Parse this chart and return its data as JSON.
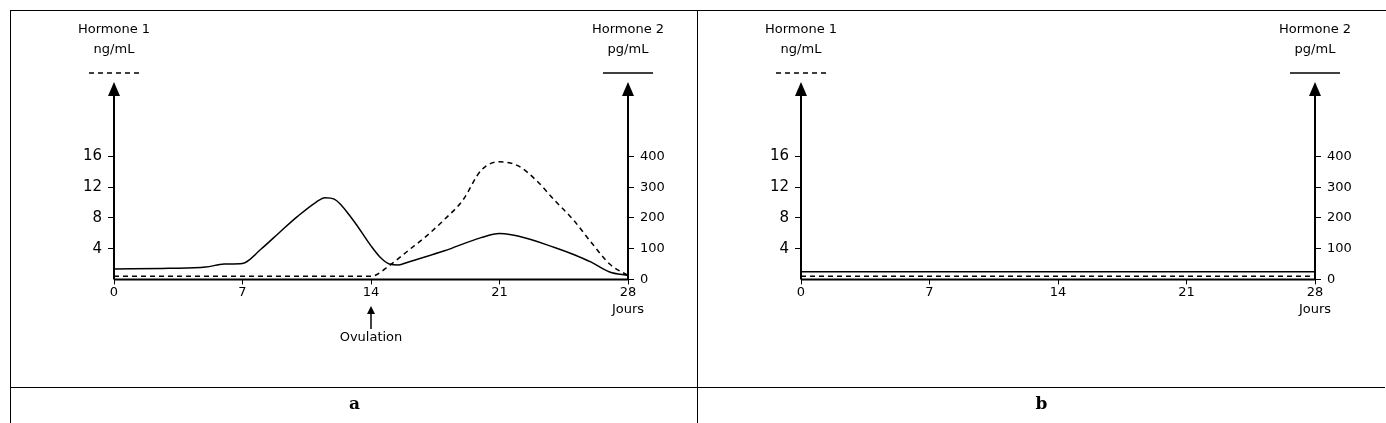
{
  "chart_data": [
    {
      "type": "line",
      "title": "a",
      "ylabel": "Hormone 1\nng/mL",
      "y2label": "Hormone 2\npg/mL",
      "xlabel": "Jours",
      "xlim": [
        0,
        28
      ],
      "xticks": [
        0,
        7,
        14,
        21,
        28
      ],
      "ylim": [
        0,
        24
      ],
      "yticks": [
        4,
        8,
        12,
        16
      ],
      "y2lim": [
        0,
        600
      ],
      "y2ticks": [
        0,
        100,
        200,
        300,
        400
      ],
      "grid": false,
      "marker": "none",
      "annotations": [
        "Ovulation"
      ],
      "series": [
        {
          "color": "#000000",
          "line_style": "dashed",
          "x": [
            0,
            7,
            14,
            15,
            16,
            17,
            18,
            19,
            20,
            21,
            22,
            23,
            24,
            25,
            26,
            27,
            28
          ],
          "values": [
            0.4,
            0.4,
            0.4,
            1.8,
            3.7,
            5.6,
            7.8,
            10.3,
            14.2,
            15.3,
            14.8,
            12.9,
            10.3,
            7.8,
            4.8,
            2.0,
            0.5
          ]
        },
        {
          "color": "#000000",
          "line_style": "solid",
          "axis": "y2",
          "x": [
            0,
            3,
            5,
            6,
            7,
            8,
            9,
            10,
            11,
            11.5,
            12,
            13,
            14,
            14.5,
            15,
            15.5,
            16,
            18,
            20,
            21,
            22,
            24,
            25,
            26,
            27,
            28
          ],
          "values": [
            34,
            36,
            40,
            50,
            52,
            98,
            152,
            205,
            251,
            266,
            261,
            195,
            109,
            72,
            50,
            47,
            56,
            93,
            136,
            149,
            141,
            104,
            82,
            56,
            24,
            13
          ]
        }
      ]
    },
    {
      "type": "line",
      "title": "b",
      "ylabel": "Hormone 1\nng/mL",
      "y2label": "Hormone 2\npg/mL",
      "xlabel": "Jours",
      "xlim": [
        0,
        28
      ],
      "xticks": [
        0,
        7,
        14,
        21,
        28
      ],
      "ylim": [
        0,
        24
      ],
      "yticks": [
        4,
        8,
        12,
        16
      ],
      "y2lim": [
        0,
        600
      ],
      "y2ticks": [
        0,
        100,
        200,
        300,
        400
      ],
      "grid": false,
      "marker": "none",
      "series": [
        {
          "color": "#000000",
          "line_style": "dashed",
          "x": [
            0,
            28
          ],
          "values": [
            0.4,
            0.4
          ]
        },
        {
          "color": "#000000",
          "line_style": "solid",
          "axis": "y2",
          "x": [
            0,
            28
          ],
          "values": [
            25,
            25
          ]
        }
      ]
    }
  ]
}
